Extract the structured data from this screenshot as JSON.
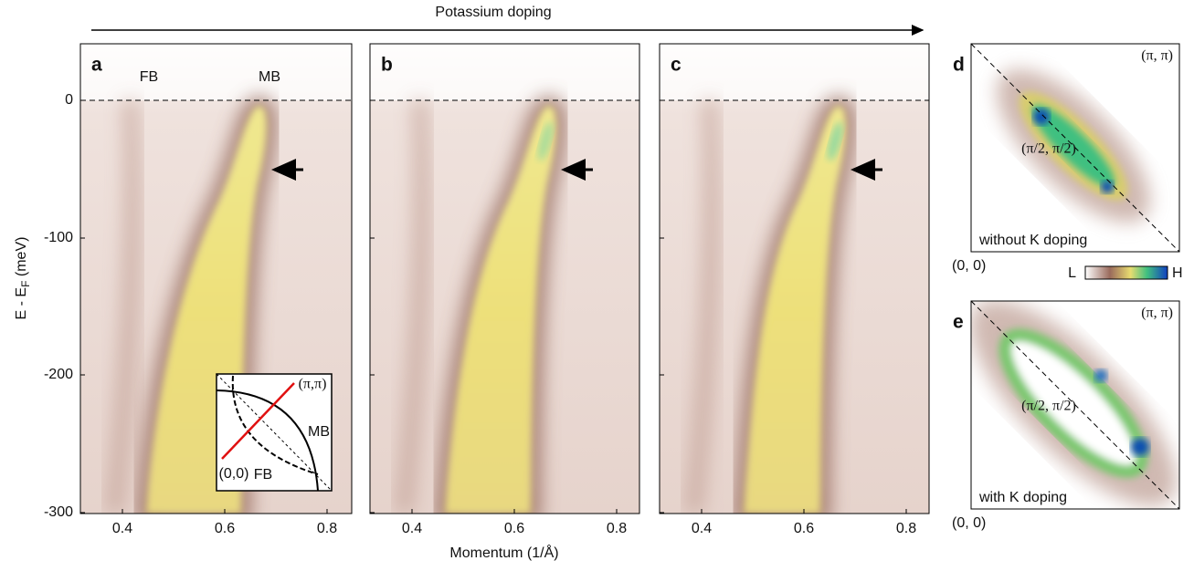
{
  "header": {
    "title": "Potassium doping"
  },
  "y_axis": {
    "label_parts": [
      "E - E",
      "F",
      " (meV)"
    ],
    "ticks": [
      "0",
      "-100",
      "-200",
      "-300"
    ]
  },
  "x_axis": {
    "label": "Momentum (1/Å)",
    "ticks": [
      "0.4",
      "0.6",
      "0.8"
    ]
  },
  "dispersion_panels": [
    {
      "letter": "a",
      "annotations": [
        "FB",
        "MB"
      ]
    },
    {
      "letter": "b"
    },
    {
      "letter": "c"
    }
  ],
  "inset": {
    "corner_top": "(π,π)",
    "corner_bottom": "(0,0)",
    "band_labels": [
      "MB",
      "FB"
    ]
  },
  "fermi_surface_panels": [
    {
      "letter": "d",
      "corner_top": "(π, π)",
      "center": "(π/2, π/2)",
      "caption": "without K doping",
      "corner_bottom": "(0, 0)"
    },
    {
      "letter": "e",
      "corner_top": "(π, π)",
      "center": "(π/2, π/2)",
      "caption": "with K doping",
      "corner_bottom": "(0, 0)"
    }
  ],
  "colorbar": {
    "low": "L",
    "high": "H"
  }
}
